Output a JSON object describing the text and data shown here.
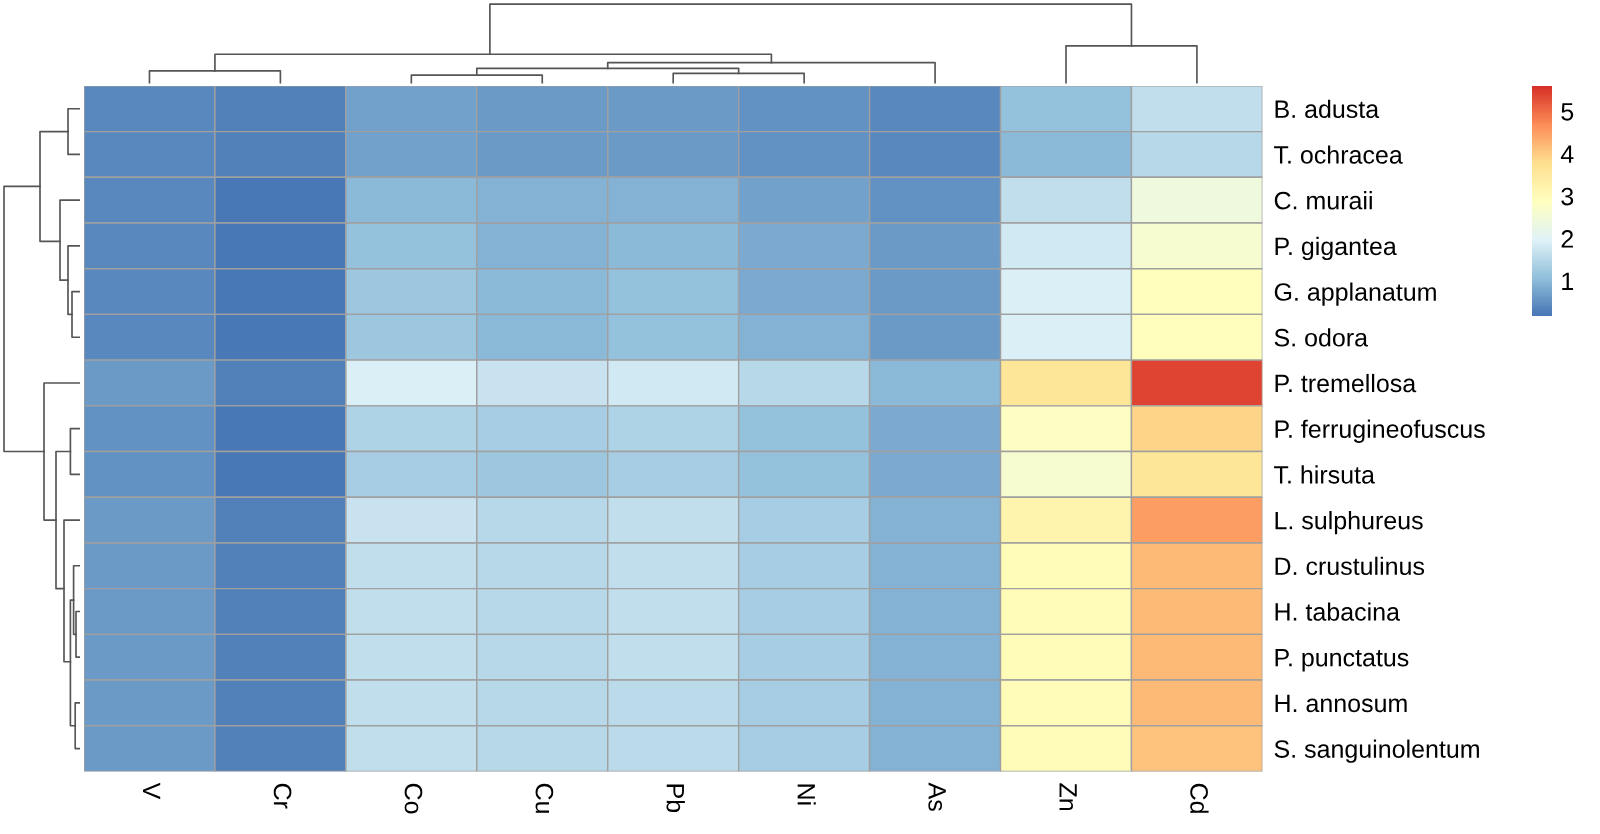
{
  "chart_data": {
    "type": "heatmap",
    "categories": [
      "V",
      "Cr",
      "Co",
      "Cu",
      "Pb",
      "Ni",
      "As",
      "Zn",
      "Cd"
    ],
    "y_categories": [
      "B. adusta",
      "T. ochracea",
      "C. muraii",
      "P. gigantea",
      "G. applanatum",
      "S. odora",
      "P. tremellosa",
      "P. ferrugineofuscus",
      "T. hirsuta",
      "L. sulphureus",
      "D. crustulinus",
      "H. tabacina",
      "P. punctatus",
      "H. annosum",
      "S. sanguinolentum"
    ],
    "cells": [
      [
        0.4,
        0.3,
        0.7,
        0.6,
        0.6,
        0.5,
        0.4,
        1.1,
        1.6
      ],
      [
        0.4,
        0.3,
        0.7,
        0.6,
        0.6,
        0.5,
        0.4,
        1.0,
        1.5
      ],
      [
        0.4,
        0.2,
        1.0,
        0.9,
        0.9,
        0.7,
        0.5,
        1.6,
        2.4
      ],
      [
        0.4,
        0.2,
        1.1,
        0.9,
        1.0,
        0.8,
        0.6,
        1.8,
        2.6
      ],
      [
        0.4,
        0.2,
        1.2,
        1.0,
        1.1,
        0.8,
        0.6,
        1.9,
        2.9
      ],
      [
        0.4,
        0.2,
        1.2,
        1.0,
        1.1,
        0.9,
        0.6,
        1.9,
        2.9
      ],
      [
        0.6,
        0.3,
        1.9,
        1.7,
        1.8,
        1.5,
        1.0,
        3.6,
        5.4
      ],
      [
        0.5,
        0.2,
        1.4,
        1.3,
        1.4,
        1.1,
        0.8,
        2.8,
        3.9
      ],
      [
        0.5,
        0.2,
        1.3,
        1.2,
        1.3,
        1.1,
        0.8,
        2.6,
        3.6
      ],
      [
        0.6,
        0.3,
        1.7,
        1.5,
        1.6,
        1.3,
        0.9,
        3.2,
        4.5
      ],
      [
        0.6,
        0.3,
        1.6,
        1.5,
        1.6,
        1.3,
        0.9,
        3.0,
        4.2
      ],
      [
        0.6,
        0.3,
        1.6,
        1.5,
        1.6,
        1.3,
        0.9,
        3.0,
        4.2
      ],
      [
        0.6,
        0.3,
        1.6,
        1.5,
        1.6,
        1.3,
        0.9,
        3.0,
        4.2
      ],
      [
        0.6,
        0.3,
        1.6,
        1.5,
        1.55,
        1.3,
        0.9,
        3.0,
        4.2
      ],
      [
        0.6,
        0.3,
        1.6,
        1.5,
        1.55,
        1.3,
        0.9,
        3.0,
        4.1
      ]
    ],
    "clim": [
      0.15,
      5.6
    ],
    "cticks": [
      1,
      2,
      3,
      4,
      5
    ]
  }
}
